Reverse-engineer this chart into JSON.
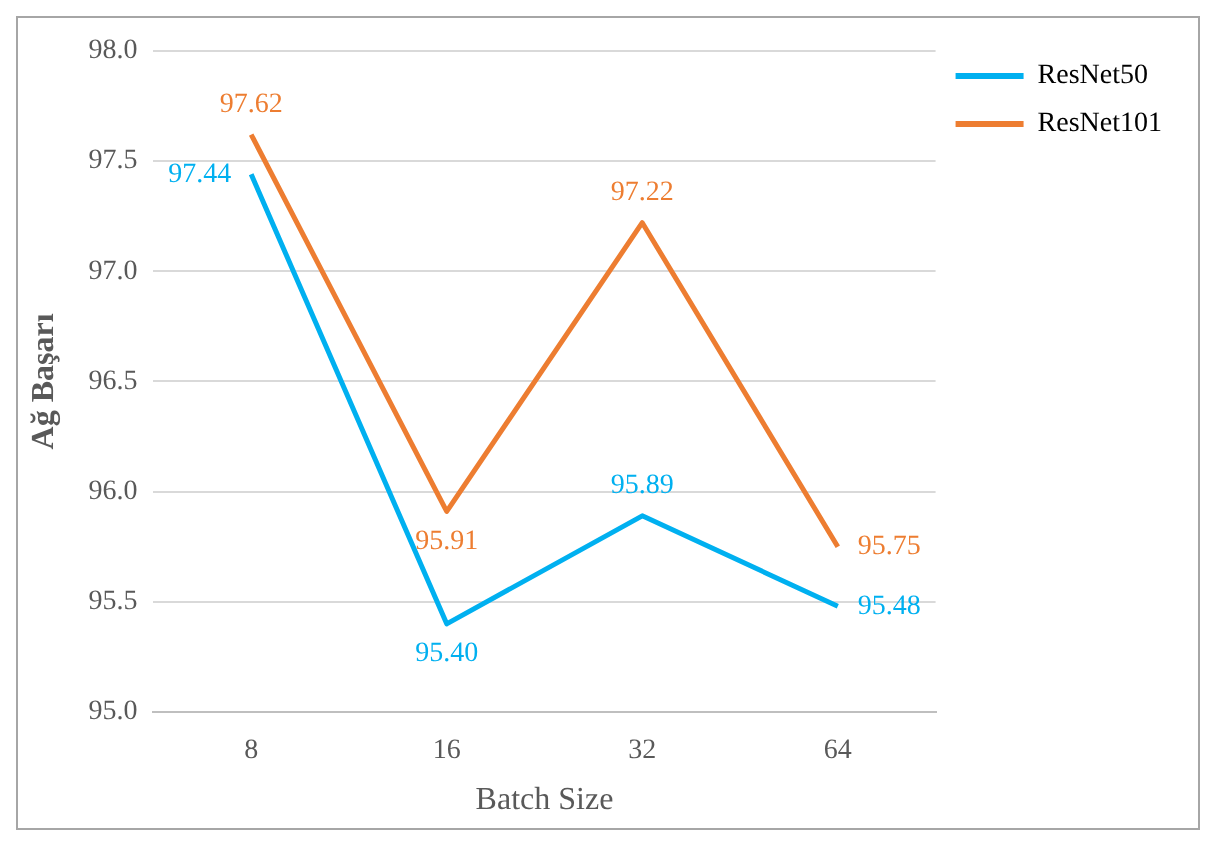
{
  "chart_data": {
    "type": "line",
    "xlabel": "Batch Size",
    "ylabel": "Ağ Başarı",
    "categories": [
      "8",
      "16",
      "32",
      "64"
    ],
    "series": [
      {
        "name": "ResNet50",
        "color": "#00b0f0",
        "values": [
          97.44,
          95.4,
          95.89,
          95.48
        ],
        "value_labels": [
          "97.44",
          "95.40",
          "95.89",
          "95.48"
        ]
      },
      {
        "name": "ResNet101",
        "color": "#ed7d31",
        "values": [
          97.62,
          95.91,
          97.22,
          95.75
        ],
        "value_labels": [
          "97.62",
          "95.91",
          "97.22",
          "95.75"
        ]
      }
    ],
    "ylim": [
      95,
      98
    ],
    "yticks": [
      {
        "value": 95,
        "label": "95.0"
      },
      {
        "value": 95.5,
        "label": "95.5"
      },
      {
        "value": 96,
        "label": "96.0"
      },
      {
        "value": 96.5,
        "label": "96.5"
      },
      {
        "value": 97,
        "label": "97.0"
      },
      {
        "value": 97.5,
        "label": "97.5"
      },
      {
        "value": 98,
        "label": "98.0"
      }
    ],
    "grid": "y",
    "legend": "top right",
    "marker": "none",
    "line_style": "solid"
  }
}
